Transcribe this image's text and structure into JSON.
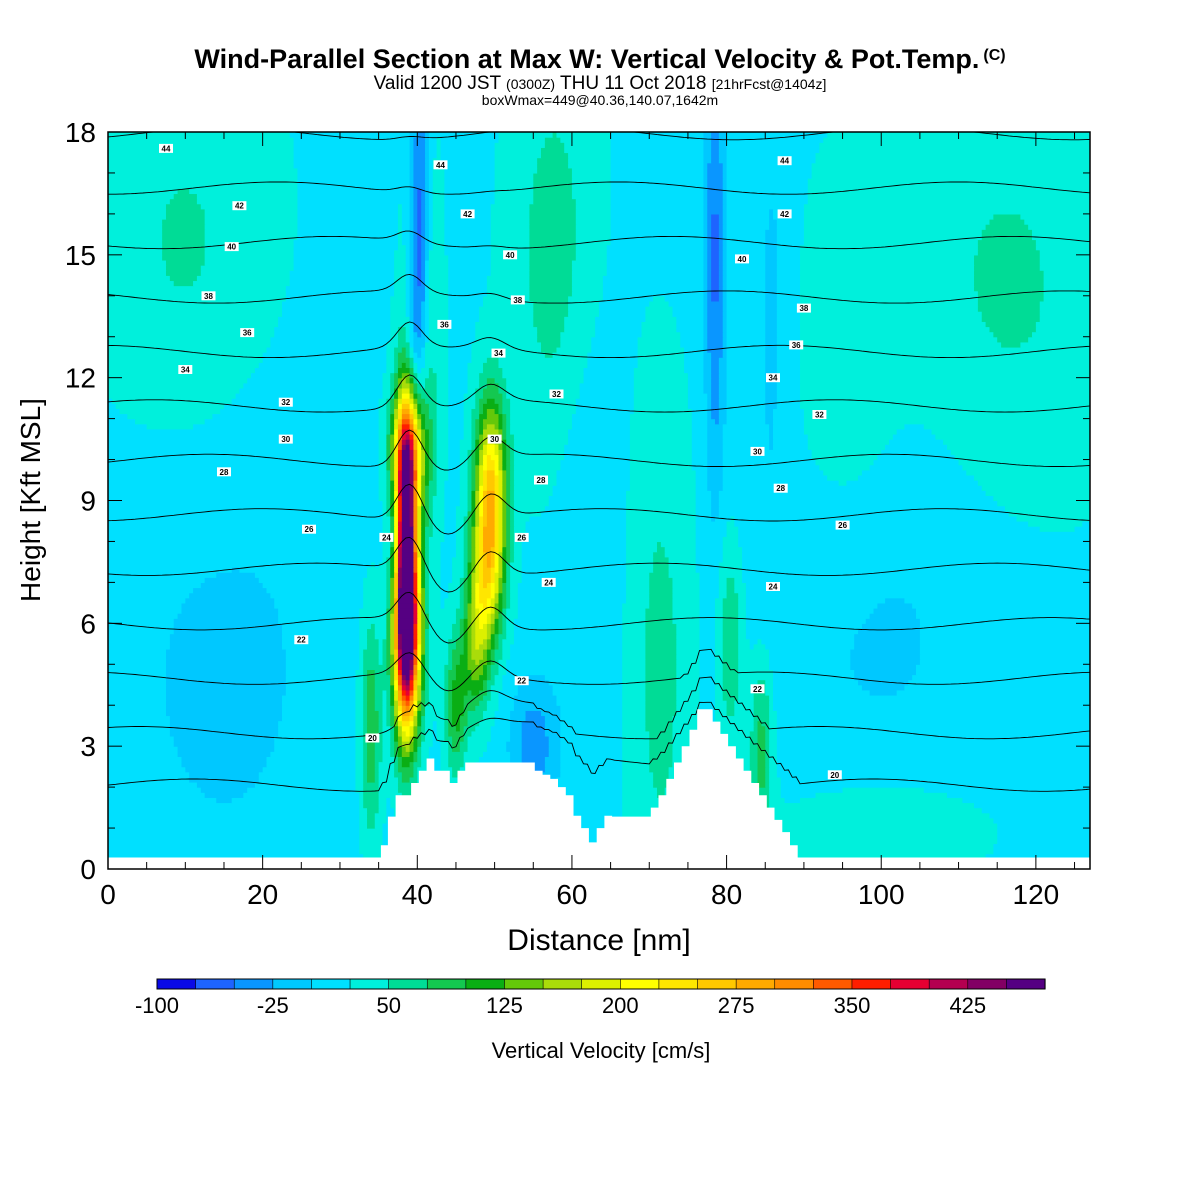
{
  "header": {
    "title": "Wind-Parallel Section at Max W: Vertical Velocity & Pot.Temp.",
    "title_mark": "(C)",
    "valid_prefix": "Valid 1200 JST",
    "valid_utc": "(0300Z)",
    "valid_date": "THU 11 Oct 2018",
    "forecast": "[21hrFcst@1404z]",
    "box_info": "boxWmax=449@40.36,140.07,1642m"
  },
  "chart_data": {
    "type": "heatmap",
    "xlabel": "Distance [nm]",
    "ylabel": "Height [Kft MSL]",
    "xlim": [
      0,
      127
    ],
    "ylim": [
      0,
      18
    ],
    "xticks": [
      0,
      20,
      40,
      60,
      80,
      100,
      120
    ],
    "yticks": [
      0,
      3,
      6,
      9,
      12,
      15,
      18
    ],
    "colorbar": {
      "label": "Vertical Velocity [cm/s]",
      "levels": [
        -100,
        -75,
        -50,
        -25,
        0,
        25,
        50,
        75,
        100,
        125,
        150,
        175,
        200,
        225,
        250,
        275,
        300,
        325,
        350,
        375,
        400,
        425,
        450
      ],
      "tick_labels": [
        "-100",
        "-25",
        "50",
        "125",
        "200",
        "275",
        "350",
        "425"
      ],
      "tick_values": [
        -100,
        -25,
        50,
        125,
        200,
        275,
        350,
        425
      ],
      "colors": [
        "#0a0ae6",
        "#1e64ff",
        "#0a96ff",
        "#00c8ff",
        "#00e0ff",
        "#00f0dc",
        "#00dc96",
        "#14c850",
        "#0aae14",
        "#64c80a",
        "#aadc0a",
        "#dcf000",
        "#ffff00",
        "#ffe600",
        "#ffc800",
        "#ffaa00",
        "#ff8c00",
        "#ff5a00",
        "#ff1e00",
        "#e60032",
        "#b40050",
        "#820064",
        "#550082"
      ]
    },
    "background_w": 20,
    "updrafts": [
      {
        "x": 38.5,
        "y": 7.8,
        "peak": 449,
        "sx": 1.0,
        "sy": 2.4
      },
      {
        "x": 38.7,
        "y": 5.5,
        "peak": 280,
        "sx": 1.3,
        "sy": 1.6
      },
      {
        "x": 38.8,
        "y": 10.2,
        "peak": 170,
        "sx": 1.6,
        "sy": 1.0
      },
      {
        "x": 49.5,
        "y": 9.2,
        "peak": 230,
        "sx": 1.4,
        "sy": 1.6
      },
      {
        "x": 48.8,
        "y": 7.0,
        "peak": 140,
        "sx": 1.5,
        "sy": 1.3
      },
      {
        "x": 47.5,
        "y": 5.3,
        "peak": 100,
        "sx": 1.2,
        "sy": 1.1
      },
      {
        "x": 40.5,
        "y": 12.5,
        "peak": 70,
        "sx": 1.5,
        "sy": 3.5
      },
      {
        "x": 58.0,
        "y": 15.0,
        "peak": 45,
        "sx": 4.0,
        "sy": 3.5
      },
      {
        "x": 71.5,
        "y": 5.0,
        "peak": 40,
        "sx": 3.0,
        "sy": 4.5
      },
      {
        "x": 80.5,
        "y": 5.5,
        "peak": 60,
        "sx": 1.2,
        "sy": 1.8
      },
      {
        "x": 84.5,
        "y": 3.0,
        "peak": 70,
        "sx": 1.1,
        "sy": 1.6
      },
      {
        "x": 34.0,
        "y": 3.5,
        "peak": 80,
        "sx": 1.0,
        "sy": 2.0
      },
      {
        "x": 45.0,
        "y": 4.0,
        "peak": 90,
        "sx": 1.0,
        "sy": 1.2
      },
      {
        "x": 10.0,
        "y": 15.0,
        "peak": 35,
        "sx": 8.0,
        "sy": 3.5
      },
      {
        "x": 116.0,
        "y": 14.0,
        "peak": 35,
        "sx": 10.0,
        "sy": 4.0
      },
      {
        "x": 95.0,
        "y": 12.0,
        "peak": 30,
        "sx": 5.0,
        "sy": 3.0
      },
      {
        "x": 100.0,
        "y": 1.0,
        "peak": 30,
        "sx": 10.0,
        "sy": 1.0
      }
    ],
    "downdrafts": [
      {
        "x": 40.3,
        "y": 15.5,
        "peak": -110,
        "sx": 0.9,
        "sy": 2.8
      },
      {
        "x": 39.7,
        "y": 12.8,
        "peak": -60,
        "sx": 1.0,
        "sy": 1.6
      },
      {
        "x": 78.5,
        "y": 15.0,
        "peak": -75,
        "sx": 0.9,
        "sy": 4.0
      },
      {
        "x": 37.2,
        "y": 8.0,
        "peak": -60,
        "sx": 0.7,
        "sy": 1.6
      },
      {
        "x": 55.0,
        "y": 3.0,
        "peak": -60,
        "sx": 2.2,
        "sy": 1.2
      },
      {
        "x": 15.0,
        "y": 5.0,
        "peak": -25,
        "sx": 12.0,
        "sy": 5.0
      },
      {
        "x": 100.0,
        "y": 6.5,
        "peak": -25,
        "sx": 13.0,
        "sy": 4.0
      },
      {
        "x": 62.0,
        "y": 9.0,
        "peak": -20,
        "sx": 3.0,
        "sy": 5.0
      },
      {
        "x": 86.0,
        "y": 14.0,
        "peak": -25,
        "sx": 2.0,
        "sy": 4.0
      }
    ],
    "terrain": {
      "x": [
        0,
        35.3,
        35.3,
        36.2,
        36.2,
        37.2,
        37.2,
        39.2,
        39.2,
        40.2,
        40.2,
        41.2,
        41.2,
        42.2,
        42.2,
        44.2,
        44.2,
        45.2,
        45.2,
        46.2,
        46.2,
        55.2,
        55.2,
        56.2,
        56.2,
        57.2,
        57.2,
        58.2,
        58.2,
        59.2,
        59.2,
        60.2,
        60.2,
        61.2,
        61.2,
        62.2,
        62.2,
        63.2,
        63.2,
        64.2,
        64.2,
        65.2,
        65.2,
        70.2,
        70.2,
        71.2,
        71.2,
        72.2,
        72.2,
        73.2,
        73.2,
        74.2,
        74.2,
        75.2,
        75.2,
        76.2,
        76.2,
        78.2,
        78.2,
        79.2,
        79.2,
        80.2,
        80.2,
        81.2,
        81.2,
        82.2,
        82.2,
        83.2,
        83.2,
        84.2,
        84.2,
        85.2,
        85.2,
        86.2,
        86.2,
        87.2,
        87.2,
        88.2,
        88.2,
        89.2,
        89.2,
        127
      ],
      "h": [
        0.28,
        0.28,
        0.58,
        0.58,
        1.28,
        1.28,
        1.8,
        1.8,
        2.1,
        2.1,
        2.4,
        2.4,
        2.7,
        2.7,
        2.4,
        2.4,
        2.1,
        2.1,
        2.4,
        2.4,
        2.6,
        2.6,
        2.4,
        2.4,
        2.3,
        2.3,
        2.2,
        2.2,
        2.0,
        2.0,
        1.8,
        1.8,
        1.3,
        1.3,
        1.0,
        1.0,
        0.65,
        0.65,
        1.0,
        1.0,
        1.3,
        1.3,
        1.28,
        1.28,
        1.5,
        1.5,
        1.8,
        1.8,
        2.2,
        2.2,
        2.6,
        2.6,
        3.0,
        3.0,
        3.4,
        3.4,
        3.9,
        3.9,
        3.6,
        3.6,
        3.3,
        3.3,
        3.0,
        3.0,
        2.7,
        2.7,
        2.4,
        2.4,
        2.1,
        2.1,
        1.8,
        1.8,
        1.5,
        1.5,
        1.2,
        1.2,
        0.9,
        0.9,
        0.58,
        0.58,
        0.28,
        0.28
      ]
    },
    "theta_contours": {
      "levels": [
        20,
        22,
        24,
        26,
        28,
        30,
        32,
        34,
        36,
        38,
        40,
        42,
        44
      ],
      "labels": [
        {
          "text": "20",
          "x": 34.2,
          "y": 3.2
        },
        {
          "text": "20",
          "x": 94.0,
          "y": 2.3
        },
        {
          "text": "22",
          "x": 25.0,
          "y": 5.6
        },
        {
          "text": "22",
          "x": 53.5,
          "y": 4.6
        },
        {
          "text": "22",
          "x": 84.0,
          "y": 4.4
        },
        {
          "text": "24",
          "x": 36.0,
          "y": 8.1
        },
        {
          "text": "24",
          "x": 57.0,
          "y": 7.0
        },
        {
          "text": "24",
          "x": 86.0,
          "y": 6.9
        },
        {
          "text": "26",
          "x": 26.0,
          "y": 8.3
        },
        {
          "text": "26",
          "x": 53.5,
          "y": 8.1
        },
        {
          "text": "26",
          "x": 95.0,
          "y": 8.4
        },
        {
          "text": "28",
          "x": 15.0,
          "y": 9.7
        },
        {
          "text": "28",
          "x": 56.0,
          "y": 9.5
        },
        {
          "text": "28",
          "x": 87.0,
          "y": 9.3
        },
        {
          "text": "30",
          "x": 23.0,
          "y": 10.5
        },
        {
          "text": "30",
          "x": 50.0,
          "y": 10.5
        },
        {
          "text": "30",
          "x": 84.0,
          "y": 10.2
        },
        {
          "text": "32",
          "x": 23.0,
          "y": 11.4
        },
        {
          "text": "32",
          "x": 58.0,
          "y": 11.6
        },
        {
          "text": "32",
          "x": 92.0,
          "y": 11.1
        },
        {
          "text": "34",
          "x": 10.0,
          "y": 12.2
        },
        {
          "text": "34",
          "x": 50.5,
          "y": 12.6
        },
        {
          "text": "34",
          "x": 86.0,
          "y": 12.0
        },
        {
          "text": "36",
          "x": 18.0,
          "y": 13.1
        },
        {
          "text": "36",
          "x": 43.5,
          "y": 13.3
        },
        {
          "text": "36",
          "x": 89.0,
          "y": 12.8
        },
        {
          "text": "38",
          "x": 13.0,
          "y": 14.0
        },
        {
          "text": "38",
          "x": 53.0,
          "y": 13.9
        },
        {
          "text": "38",
          "x": 90.0,
          "y": 13.7
        },
        {
          "text": "40",
          "x": 16.0,
          "y": 15.2
        },
        {
          "text": "40",
          "x": 52.0,
          "y": 15.0
        },
        {
          "text": "40",
          "x": 82.0,
          "y": 14.9
        },
        {
          "text": "42",
          "x": 17.0,
          "y": 16.2
        },
        {
          "text": "42",
          "x": 46.5,
          "y": 16.0
        },
        {
          "text": "42",
          "x": 87.5,
          "y": 16.0
        },
        {
          "text": "44",
          "x": 7.5,
          "y": 17.6
        },
        {
          "text": "44",
          "x": 43.0,
          "y": 17.2
        },
        {
          "text": "44",
          "x": 87.5,
          "y": 17.3
        }
      ]
    }
  }
}
